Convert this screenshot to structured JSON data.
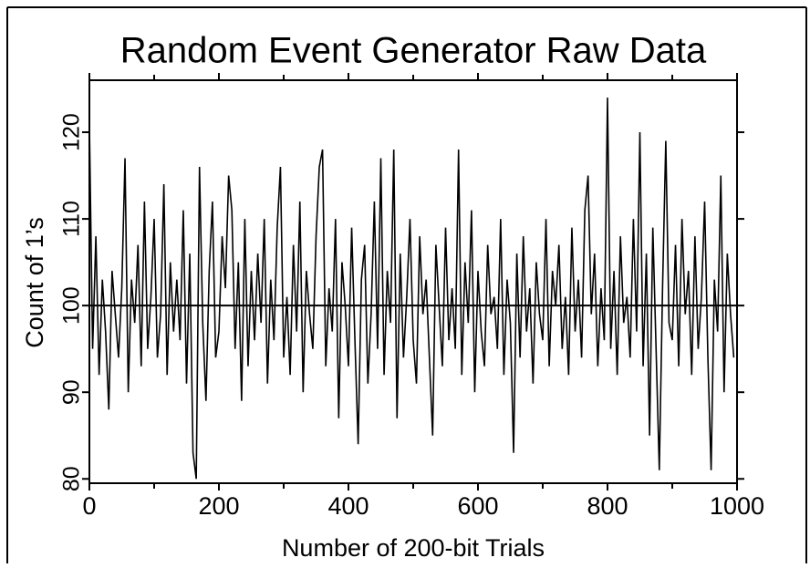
{
  "chart_data": {
    "type": "line",
    "title": "Random Event Generator Raw Data",
    "x_label": "Number of 200-bit Trials",
    "y_label": "Count of 1’s",
    "xlim": [
      0,
      1000
    ],
    "ylim": [
      79.5,
      126
    ],
    "xticks": [
      0,
      200,
      400,
      600,
      800,
      1000
    ],
    "xminor": [
      100,
      300,
      500,
      700,
      900
    ],
    "yticks": [
      80,
      90,
      100,
      110,
      120
    ],
    "reference_line": 100,
    "color": "#000000",
    "x": [
      0,
      5,
      10,
      15,
      20,
      25,
      30,
      35,
      40,
      45,
      50,
      55,
      60,
      65,
      70,
      75,
      80,
      85,
      90,
      95,
      100,
      105,
      110,
      115,
      120,
      125,
      130,
      135,
      140,
      145,
      150,
      155,
      160,
      165,
      170,
      175,
      180,
      185,
      190,
      195,
      200,
      205,
      210,
      215,
      220,
      225,
      230,
      235,
      240,
      245,
      250,
      255,
      260,
      265,
      270,
      275,
      280,
      285,
      290,
      295,
      300,
      305,
      310,
      315,
      320,
      325,
      330,
      335,
      340,
      345,
      350,
      355,
      360,
      365,
      370,
      375,
      380,
      385,
      390,
      395,
      400,
      405,
      410,
      415,
      420,
      425,
      430,
      435,
      440,
      445,
      450,
      455,
      460,
      465,
      470,
      475,
      480,
      485,
      490,
      495,
      500,
      505,
      510,
      515,
      520,
      525,
      530,
      535,
      540,
      545,
      550,
      555,
      560,
      565,
      570,
      575,
      580,
      585,
      590,
      595,
      600,
      605,
      610,
      615,
      620,
      625,
      630,
      635,
      640,
      645,
      650,
      655,
      660,
      665,
      670,
      675,
      680,
      685,
      690,
      695,
      700,
      705,
      710,
      715,
      720,
      725,
      730,
      735,
      740,
      745,
      750,
      755,
      760,
      765,
      770,
      775,
      780,
      785,
      790,
      795,
      800,
      805,
      810,
      815,
      820,
      825,
      830,
      835,
      840,
      845,
      850,
      855,
      860,
      865,
      870,
      875,
      880,
      885,
      890,
      895,
      900,
      905,
      910,
      915,
      920,
      925,
      930,
      935,
      940,
      945,
      950,
      955,
      960,
      965,
      970,
      975,
      980,
      985,
      990,
      995
    ],
    "values": [
      121,
      95,
      108,
      92,
      103,
      97,
      88,
      104,
      99,
      94,
      102,
      117,
      90,
      103,
      98,
      107,
      93,
      112,
      95,
      101,
      110,
      94,
      99,
      114,
      92,
      105,
      97,
      103,
      96,
      111,
      91,
      106,
      83,
      80,
      116,
      98,
      89,
      104,
      112,
      94,
      97,
      108,
      102,
      115,
      111,
      95,
      105,
      89,
      110,
      93,
      104,
      96,
      106,
      98,
      110,
      91,
      103,
      96,
      109,
      116,
      94,
      101,
      92,
      107,
      97,
      112,
      90,
      104,
      99,
      95,
      108,
      116,
      118,
      93,
      102,
      97,
      110,
      87,
      105,
      100,
      93,
      109,
      96,
      84,
      103,
      107,
      91,
      99,
      112,
      95,
      117,
      92,
      104,
      98,
      118,
      87,
      106,
      94,
      101,
      110,
      96,
      91,
      108,
      99,
      103,
      94,
      85,
      107,
      100,
      93,
      109,
      96,
      102,
      95,
      118,
      92,
      105,
      98,
      111,
      90,
      104,
      97,
      93,
      107,
      99,
      101,
      95,
      110,
      92,
      103,
      98,
      83,
      106,
      94,
      108,
      97,
      102,
      91,
      105,
      99,
      96,
      110,
      93,
      104,
      100,
      107,
      95,
      101,
      92,
      109,
      97,
      103,
      94,
      111,
      115,
      99,
      106,
      93,
      102,
      96,
      124,
      95,
      104,
      92,
      108,
      98,
      101,
      94,
      110,
      97,
      120,
      93,
      106,
      85,
      109,
      95,
      81,
      102,
      119,
      98,
      96,
      107,
      93,
      110,
      99,
      104,
      92,
      108,
      95,
      101,
      112,
      94,
      81,
      103,
      97,
      115,
      90,
      106,
      99,
      94
    ]
  }
}
